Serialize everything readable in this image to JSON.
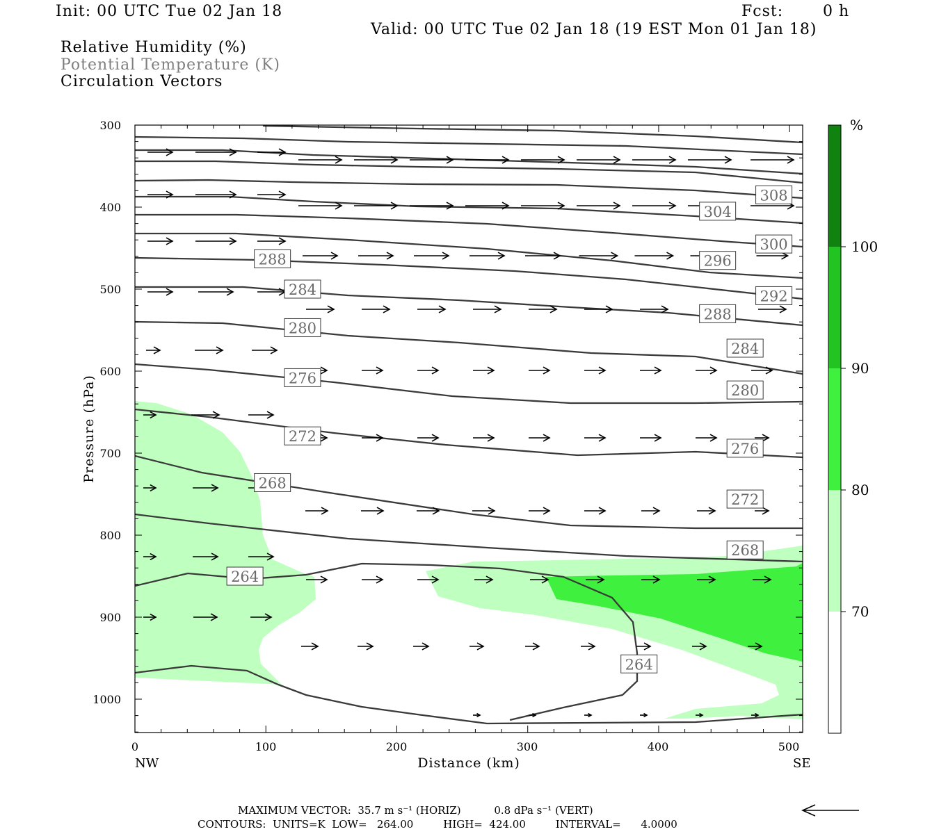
{
  "header": {
    "init": "Init: 00 UTC Tue 02 Jan 18",
    "fcst_label": "Fcst:",
    "fcst_value": "0 h",
    "valid": "Valid: 00 UTC Tue 02 Jan 18 (19 EST Mon 01 Jan 18)",
    "field1": "Relative Humidity (%)",
    "field2": "Potential Temperature (K)",
    "field3": "Circulation Vectors"
  },
  "colors": {
    "rh_70": "#bfffbf",
    "rh_80": "#3ff03f",
    "rh_90": "#21c421",
    "rh_100": "#0f820f",
    "theta_line": "#3a3a3a",
    "potential_temp_label": "#7f7f7f"
  },
  "chart_data": {
    "type": "cross-section",
    "xlabel": "Distance (km)",
    "ylabel": "Pressure (hPa)",
    "xlim": [
      0,
      510
    ],
    "ylim": [
      1040,
      300
    ],
    "y_scale": "log-pressure",
    "x_ticks": [
      "0",
      "100",
      "200",
      "300",
      "400",
      "500"
    ],
    "y_ticks": [
      "300",
      "400",
      "500",
      "600",
      "700",
      "800",
      "900",
      "1000"
    ],
    "x_endpoint_labels": [
      "NW",
      "SE"
    ],
    "colorbar": {
      "unit": "%",
      "levels": [
        "70",
        "80",
        "90",
        "100"
      ]
    },
    "theta_contour_labels": [
      {
        "text": "308",
        "x": 488,
        "p": 385
      },
      {
        "text": "304",
        "x": 445,
        "p": 405
      },
      {
        "text": "300",
        "x": 488,
        "p": 445
      },
      {
        "text": "296",
        "x": 445,
        "p": 465
      },
      {
        "text": "292",
        "x": 488,
        "p": 508
      },
      {
        "text": "288",
        "x": 105,
        "p": 463
      },
      {
        "text": "288",
        "x": 445,
        "p": 530
      },
      {
        "text": "284",
        "x": 128,
        "p": 500
      },
      {
        "text": "284",
        "x": 466,
        "p": 572
      },
      {
        "text": "280",
        "x": 128,
        "p": 547
      },
      {
        "text": "280",
        "x": 466,
        "p": 623
      },
      {
        "text": "276",
        "x": 128,
        "p": 608
      },
      {
        "text": "276",
        "x": 466,
        "p": 694
      },
      {
        "text": "272",
        "x": 128,
        "p": 679
      },
      {
        "text": "272",
        "x": 466,
        "p": 756
      },
      {
        "text": "268",
        "x": 105,
        "p": 736
      },
      {
        "text": "268",
        "x": 466,
        "p": 818
      },
      {
        "text": "264",
        "x": 84,
        "p": 850
      },
      {
        "text": "264",
        "x": 385,
        "p": 957
      }
    ],
    "max_vector": {
      "horizontal": "35.7 m s-1",
      "vertical": "0.8 dPa s-1"
    },
    "contours": {
      "units": "K",
      "low": "264.00",
      "high": "424.00",
      "interval": "4.0000"
    }
  },
  "footer": {
    "max_vector": "MAXIMUM VECTOR:  35.7 m s⁻¹ (HORIZ)          0.8 dPa s⁻¹ (VERT)",
    "contours": "CONTOURS:  UNITS=K  LOW=   264.00         HIGH=  424.00         INTERVAL=      4.0000"
  }
}
